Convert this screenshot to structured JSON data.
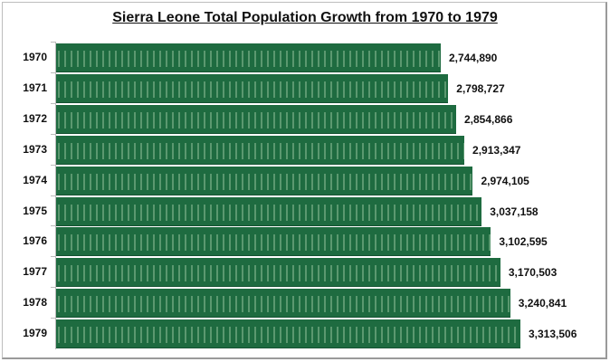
{
  "chart_data": {
    "type": "bar",
    "orientation": "horizontal",
    "title": "Sierra Leone Total Population Growth from 1970 to 1979",
    "categories": [
      "1970",
      "1971",
      "1972",
      "1973",
      "1974",
      "1975",
      "1976",
      "1977",
      "1978",
      "1979"
    ],
    "values": [
      2744890,
      2798727,
      2854866,
      2913347,
      2974105,
      3037158,
      3102595,
      3170503,
      3240841,
      3313506
    ],
    "value_labels": [
      "2,744,890",
      "2,798,727",
      "2,854,866",
      "2,913,347",
      "2,974,105",
      "3,037,158",
      "3,102,595",
      "3,170,503",
      "3,240,841",
      "3,313,506"
    ],
    "xlim": [
      0,
      3313506
    ],
    "grid": false,
    "colors": {
      "bar": "#1e6b40",
      "pattern": "#8cbe96"
    }
  }
}
